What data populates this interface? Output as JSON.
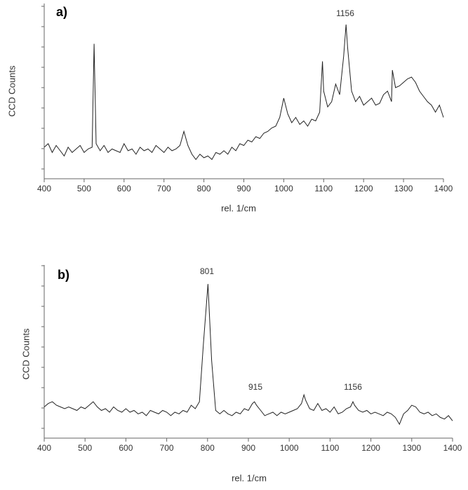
{
  "chart_data": [
    {
      "type": "line",
      "label": "a)",
      "ylabel": "CCD Counts",
      "xlabel": "rel. 1/cm",
      "annotations": [
        "1156"
      ],
      "color": "#222",
      "x": [
        400,
        410,
        420,
        430,
        440,
        450,
        460,
        470,
        480,
        490,
        500,
        510,
        520,
        525,
        530,
        540,
        550,
        560,
        570,
        580,
        590,
        600,
        610,
        620,
        630,
        640,
        650,
        660,
        670,
        680,
        690,
        700,
        710,
        720,
        730,
        740,
        750,
        760,
        770,
        780,
        790,
        800,
        810,
        820,
        830,
        840,
        850,
        860,
        870,
        880,
        890,
        900,
        910,
        920,
        930,
        940,
        950,
        960,
        970,
        980,
        990,
        1000,
        1010,
        1020,
        1030,
        1040,
        1050,
        1060,
        1070,
        1080,
        1090,
        1097,
        1100,
        1110,
        1120,
        1130,
        1140,
        1150,
        1156,
        1160,
        1170,
        1180,
        1190,
        1200,
        1210,
        1220,
        1230,
        1240,
        1250,
        1260,
        1270,
        1272,
        1280,
        1290,
        1300,
        1310,
        1320,
        1330,
        1340,
        1350,
        1360,
        1370,
        1380,
        1390,
        1400
      ],
      "values": [
        18,
        20,
        15,
        19,
        16,
        13,
        18,
        15,
        17,
        19,
        15,
        17,
        18,
        77,
        20,
        16,
        19,
        15,
        17,
        16,
        15,
        20,
        16,
        17,
        14,
        18,
        16,
        17,
        15,
        19,
        17,
        15,
        18,
        16,
        17,
        19,
        27,
        19,
        14,
        11,
        14,
        12,
        13,
        11,
        15,
        14,
        16,
        14,
        18,
        16,
        20,
        19,
        22,
        21,
        24,
        23,
        26,
        27,
        29,
        30,
        35,
        46,
        37,
        32,
        35,
        31,
        33,
        30,
        34,
        33,
        38,
        67,
        50,
        41,
        44,
        54,
        48,
        70,
        88,
        75,
        50,
        44,
        47,
        42,
        44,
        46,
        42,
        43,
        48,
        50,
        44,
        62,
        52,
        53,
        55,
        57,
        58,
        55,
        50,
        47,
        44,
        42,
        38,
        42,
        35
      ],
      "xlim": [
        400,
        1400
      ],
      "xticks": [
        400,
        500,
        600,
        700,
        800,
        900,
        1000,
        1100,
        1200,
        1300,
        1400
      ],
      "ylim": [
        0,
        100
      ]
    },
    {
      "type": "line",
      "label": "b)",
      "ylabel": "CCD Counts",
      "xlabel": "rel. 1/cm",
      "annotations": [
        "801",
        "915",
        "1156"
      ],
      "color": "#222",
      "x": [
        400,
        410,
        420,
        430,
        440,
        450,
        460,
        470,
        480,
        490,
        500,
        510,
        520,
        530,
        540,
        550,
        560,
        570,
        580,
        590,
        600,
        610,
        620,
        630,
        640,
        650,
        660,
        670,
        680,
        690,
        700,
        710,
        720,
        730,
        740,
        750,
        760,
        770,
        780,
        790,
        801,
        810,
        820,
        830,
        840,
        850,
        860,
        870,
        880,
        890,
        900,
        910,
        915,
        920,
        930,
        940,
        950,
        960,
        970,
        980,
        990,
        1000,
        1010,
        1020,
        1030,
        1036,
        1040,
        1050,
        1060,
        1070,
        1080,
        1090,
        1100,
        1110,
        1120,
        1130,
        1140,
        1150,
        1156,
        1160,
        1170,
        1180,
        1190,
        1200,
        1210,
        1220,
        1230,
        1240,
        1250,
        1260,
        1270,
        1280,
        1290,
        1300,
        1310,
        1320,
        1330,
        1340,
        1350,
        1360,
        1370,
        1380,
        1390,
        1400
      ],
      "values": [
        18,
        20,
        21,
        19,
        18,
        17,
        18,
        17,
        16,
        18,
        17,
        19,
        21,
        18,
        16,
        17,
        15,
        18,
        16,
        15,
        17,
        15,
        16,
        14,
        15,
        13,
        16,
        15,
        14,
        16,
        15,
        13,
        15,
        14,
        16,
        15,
        19,
        17,
        21,
        55,
        89,
        45,
        16,
        14,
        16,
        14,
        13,
        15,
        14,
        17,
        16,
        20,
        21,
        19,
        16,
        13,
        14,
        15,
        13,
        15,
        14,
        15,
        16,
        17,
        20,
        25,
        22,
        17,
        16,
        20,
        16,
        17,
        15,
        18,
        14,
        15,
        17,
        18,
        21,
        19,
        16,
        15,
        16,
        14,
        15,
        14,
        13,
        15,
        14,
        12,
        8,
        14,
        16,
        19,
        18,
        15,
        14,
        15,
        13,
        14,
        12,
        11,
        13,
        10
      ],
      "xlim": [
        400,
        1400
      ],
      "xticks": [
        400,
        500,
        600,
        700,
        800,
        900,
        1000,
        1100,
        1200,
        1300,
        1400
      ],
      "ylim": [
        0,
        100
      ]
    }
  ]
}
